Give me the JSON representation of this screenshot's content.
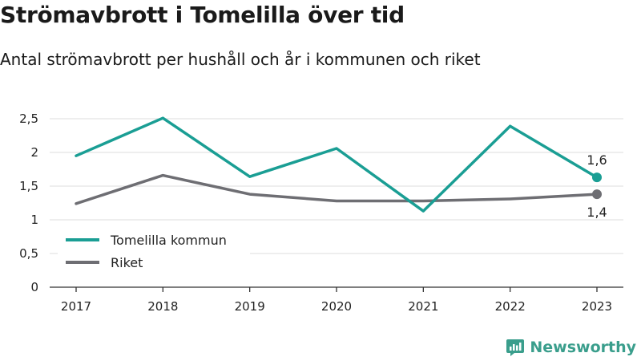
{
  "title": "Strömavbrott i Tomelilla över tid",
  "subtitle": "Antal strömavbrott per hushåll och år i kommunen och riket",
  "brand": {
    "name": "Newsworthy",
    "icon": "newsworthy-logo-icon"
  },
  "colors": {
    "tomelilla": "#1a9e94",
    "riket": "#6e6e73",
    "grid": "#dddddd",
    "axis": "#333333"
  },
  "chart_data": {
    "type": "line",
    "title": "",
    "xlabel": "",
    "ylabel": "",
    "x": [
      "2017",
      "2018",
      "2019",
      "2020",
      "2021",
      "2022",
      "2023"
    ],
    "ylim": [
      0,
      2.5
    ],
    "yticks": [
      0,
      0.5,
      1,
      1.5,
      2,
      2.5
    ],
    "ytick_labels": [
      "0",
      "0,5",
      "1",
      "1,5",
      "2",
      "2,5"
    ],
    "grid": true,
    "legend_position": "bottom-left",
    "series": [
      {
        "name": "Tomelilla kommun",
        "color": "#1a9e94",
        "values": [
          1.95,
          2.51,
          1.64,
          2.06,
          1.13,
          2.39,
          1.63
        ],
        "end_label": "1,6"
      },
      {
        "name": "Riket",
        "color": "#6e6e73",
        "values": [
          1.24,
          1.66,
          1.38,
          1.28,
          1.28,
          1.31,
          1.38
        ],
        "end_label": "1,4"
      }
    ]
  }
}
